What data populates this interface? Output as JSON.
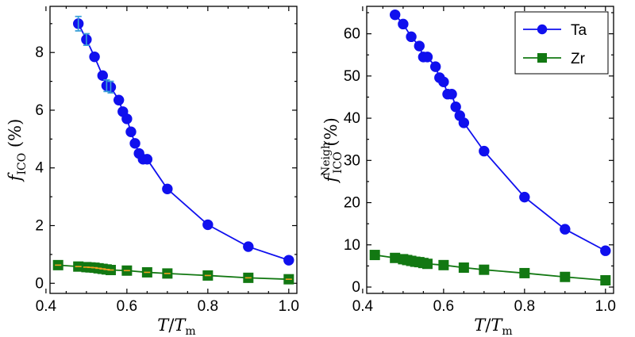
{
  "colors": {
    "ta": "#1010ee",
    "zr": "#127812",
    "ta_error": "#3aa0d8",
    "zr_error": "#f0a020"
  },
  "chart_data": [
    {
      "type": "line",
      "xlabel": {
        "italic": "T",
        "slash": "/",
        "italic2": "T",
        "sub": "m"
      },
      "ylabel": {
        "italic": "f",
        "sub": "ICO",
        "unit": "(%)"
      },
      "xlim": [
        0.41,
        1.02
      ],
      "ylim": [
        -0.35,
        9.6
      ],
      "xticks": [
        0.4,
        0.6,
        0.8,
        1.0
      ],
      "xtick_labels": [
        "0.4",
        "0.6",
        "0.8",
        "1.0"
      ],
      "yticks": [
        0,
        2,
        4,
        6,
        8
      ],
      "ytick_labels": [
        "0",
        "2",
        "4",
        "6",
        "8"
      ],
      "series": [
        {
          "name": "Ta",
          "marker": "circle",
          "x": [
            0.48,
            0.5,
            0.52,
            0.54,
            0.55,
            0.56,
            0.58,
            0.59,
            0.6,
            0.61,
            0.62,
            0.63,
            0.64,
            0.65,
            0.7,
            0.8,
            0.9,
            1.0
          ],
          "y": [
            9.0,
            8.45,
            7.85,
            7.2,
            6.85,
            6.8,
            6.35,
            5.95,
            5.7,
            5.25,
            4.85,
            4.5,
            4.3,
            4.3,
            3.27,
            2.03,
            1.27,
            0.8
          ],
          "yerr": [
            0.25,
            0.2,
            0.1,
            0.08,
            0.2,
            0.2,
            0.1,
            0.05,
            0.05,
            0.05,
            0.05,
            0.05,
            0.05,
            0.05,
            0.05,
            0.05,
            0.05,
            0.05
          ]
        },
        {
          "name": "Zr",
          "marker": "square",
          "x": [
            0.43,
            0.48,
            0.5,
            0.51,
            0.52,
            0.53,
            0.54,
            0.55,
            0.56,
            0.6,
            0.65,
            0.7,
            0.8,
            0.9,
            1.0
          ],
          "y": [
            0.63,
            0.58,
            0.56,
            0.55,
            0.54,
            0.52,
            0.5,
            0.48,
            0.46,
            0.44,
            0.38,
            0.34,
            0.27,
            0.19,
            0.14
          ],
          "yerr": [
            0.04,
            0.04,
            0.05,
            0.05,
            0.05,
            0.06,
            0.06,
            0.06,
            0.06,
            0.04,
            0.03,
            0.03,
            0.03,
            0.02,
            0.02
          ]
        }
      ],
      "legend": null
    },
    {
      "type": "line",
      "xlabel": {
        "italic": "T",
        "slash": "/",
        "italic2": "T",
        "sub": "m"
      },
      "ylabel": {
        "italic": "f",
        "sub": "ICO",
        "sup": "Neigh",
        "unit": "(%)"
      },
      "xlim": [
        0.41,
        1.02
      ],
      "ylim": [
        -1.5,
        66.5
      ],
      "xticks": [
        0.4,
        0.6,
        0.8,
        1.0
      ],
      "xtick_labels": [
        "0.4",
        "0.6",
        "0.8",
        "1.0"
      ],
      "yticks": [
        0,
        10,
        20,
        30,
        40,
        50,
        60
      ],
      "ytick_labels": [
        "0",
        "10",
        "20",
        "30",
        "40",
        "50",
        "60"
      ],
      "series": [
        {
          "name": "Ta",
          "marker": "circle",
          "x": [
            0.48,
            0.5,
            0.52,
            0.54,
            0.55,
            0.56,
            0.58,
            0.59,
            0.6,
            0.61,
            0.62,
            0.63,
            0.64,
            0.65,
            0.7,
            0.8,
            0.9,
            1.0
          ],
          "y": [
            64.5,
            62.3,
            59.3,
            57.1,
            54.5,
            54.5,
            52.2,
            49.6,
            48.6,
            45.7,
            45.7,
            42.7,
            40.6,
            38.9,
            32.2,
            21.3,
            13.7,
            8.6
          ]
        },
        {
          "name": "Zr",
          "marker": "square",
          "x": [
            0.43,
            0.48,
            0.5,
            0.51,
            0.52,
            0.53,
            0.54,
            0.55,
            0.56,
            0.6,
            0.65,
            0.7,
            0.8,
            0.9,
            1.0
          ],
          "y": [
            7.6,
            6.9,
            6.6,
            6.4,
            6.2,
            6.0,
            5.9,
            5.7,
            5.5,
            5.2,
            4.6,
            4.1,
            3.3,
            2.4,
            1.6
          ]
        }
      ],
      "legend": {
        "position": "top-right",
        "entries": [
          "Ta",
          "Zr"
        ]
      }
    }
  ]
}
